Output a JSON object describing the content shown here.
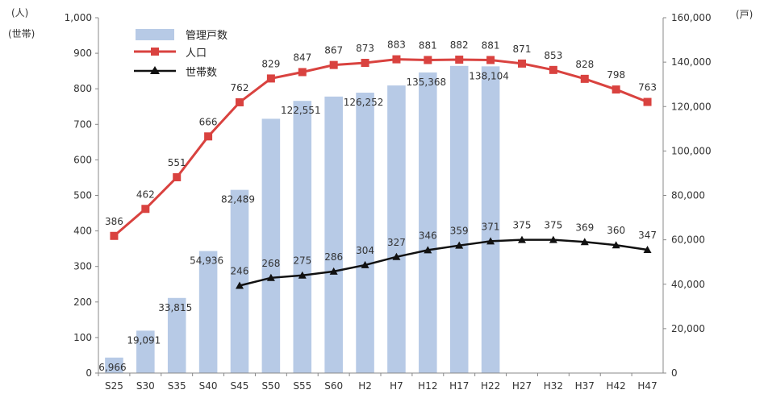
{
  "chart_data": {
    "type": "bar+line",
    "categories": [
      "S25",
      "S30",
      "S35",
      "S40",
      "S45",
      "S50",
      "S55",
      "S60",
      "H2",
      "H7",
      "H12",
      "H17",
      "H22",
      "H27",
      "H32",
      "H37",
      "H42",
      "H47"
    ],
    "left_axis": {
      "unit_line1": "(人)",
      "unit_line2": "(世帯)",
      "ylim": [
        0,
        1000
      ],
      "ticks": [
        "0",
        "100",
        "200",
        "300",
        "400",
        "500",
        "600",
        "700",
        "800",
        "900",
        "1,000"
      ]
    },
    "right_axis": {
      "unit": "(戸)",
      "ylim": [
        0,
        160000
      ],
      "ticks": [
        "0",
        "20,000",
        "40,000",
        "60,000",
        "80,000",
        "100,000",
        "120,000",
        "140,000",
        "160,000"
      ]
    },
    "legend": {
      "placement": "top-left"
    },
    "series": [
      {
        "name": "管理戸数",
        "kind": "bar",
        "axis": "right",
        "color": "#b7cae6",
        "values": [
          6966,
          19091,
          33815,
          54936,
          82489,
          114500,
          122551,
          124500,
          126252,
          129500,
          135368,
          138300,
          138104,
          null,
          null,
          null,
          null,
          null
        ],
        "labels": [
          "6,966",
          "19,091",
          "33,815",
          "54,936",
          "82,489",
          "",
          "122,551",
          "",
          "126,252",
          "",
          "135,368",
          "",
          "138,104",
          "",
          "",
          "",
          "",
          ""
        ]
      },
      {
        "name": "人口",
        "kind": "line",
        "axis": "left",
        "color": "#d9423f",
        "marker": "square",
        "values": [
          386,
          462,
          551,
          666,
          762,
          829,
          847,
          867,
          873,
          883,
          881,
          882,
          881,
          871,
          853,
          828,
          798,
          763
        ],
        "labels": [
          "386",
          "462",
          "551",
          "666",
          "762",
          "829",
          "847",
          "867",
          "873",
          "883",
          "881",
          "882",
          "881",
          "871",
          "853",
          "828",
          "798",
          "763"
        ]
      },
      {
        "name": "世帯数",
        "kind": "line",
        "axis": "left",
        "color": "#111111",
        "marker": "triangle",
        "values": [
          null,
          null,
          null,
          null,
          246,
          268,
          275,
          286,
          304,
          327,
          346,
          359,
          371,
          375,
          375,
          369,
          360,
          347
        ],
        "labels": [
          "",
          "",
          "",
          "",
          "246",
          "268",
          "275",
          "286",
          "304",
          "327",
          "346",
          "359",
          "371",
          "375",
          "375",
          "369",
          "360",
          "347"
        ]
      }
    ]
  }
}
